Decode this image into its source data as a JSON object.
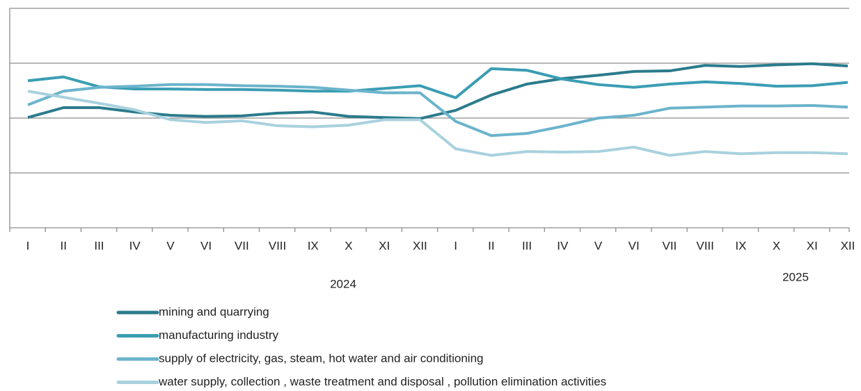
{
  "chart_data": {
    "type": "line",
    "categories": [
      "I",
      "II",
      "III",
      "IV",
      "V",
      "VI",
      "VII",
      "VIII",
      "IX",
      "X",
      "XI",
      "XII",
      "I",
      "II",
      "III",
      "IV",
      "V",
      "VI",
      "VII",
      "VIII",
      "IX",
      "X",
      "XI",
      "XII"
    ],
    "year_labels": [
      "2024",
      "2025"
    ],
    "ylim": [
      0,
      4
    ],
    "yticks": [
      0,
      1,
      2,
      3,
      4
    ],
    "grid": true,
    "series": [
      {
        "name": "mining and quarrying",
        "color": "#2b7b8c",
        "values": [
          2.01,
          2.19,
          2.19,
          2.11,
          2.05,
          2.03,
          2.04,
          2.09,
          2.11,
          2.03,
          2.01,
          1.99,
          2.14,
          2.42,
          2.62,
          2.72,
          2.78,
          2.85,
          2.86,
          2.96,
          2.94,
          2.97,
          2.99,
          2.95
        ]
      },
      {
        "name": "manufacturing industry",
        "color": "#3a9db3",
        "values": [
          2.68,
          2.75,
          2.57,
          2.53,
          2.53,
          2.52,
          2.52,
          2.51,
          2.49,
          2.49,
          2.54,
          2.59,
          2.37,
          2.9,
          2.87,
          2.71,
          2.61,
          2.56,
          2.62,
          2.66,
          2.63,
          2.58,
          2.59,
          2.65
        ]
      },
      {
        "name": "supply of electricity, gas, steam, hot water and air conditioning",
        "color": "#6bb4cc",
        "values": [
          2.24,
          2.49,
          2.56,
          2.58,
          2.61,
          2.61,
          2.59,
          2.58,
          2.56,
          2.51,
          2.46,
          2.46,
          1.94,
          1.68,
          1.72,
          1.85,
          2.0,
          2.05,
          2.18,
          2.2,
          2.22,
          2.22,
          2.23,
          2.2
        ]
      },
      {
        "name": "water supply, collection , waste treatment and disposal , pollution elimination activities",
        "color": "#a9d1de",
        "values": [
          2.49,
          2.38,
          2.27,
          2.15,
          1.97,
          1.92,
          1.95,
          1.86,
          1.84,
          1.87,
          1.97,
          1.97,
          1.44,
          1.32,
          1.39,
          1.38,
          1.39,
          1.47,
          1.32,
          1.39,
          1.35,
          1.37,
          1.37,
          1.35
        ]
      }
    ]
  }
}
